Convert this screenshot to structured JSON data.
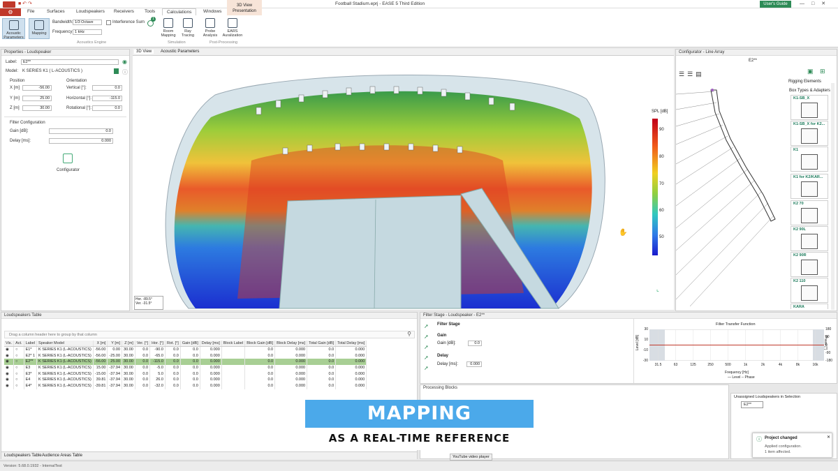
{
  "window": {
    "title": "Football Stadium.eprj - EASE 5 Third Edition",
    "users_guide": "User's Guide"
  },
  "menu_tabs": [
    "File",
    "Surfaces",
    "Loudspeakers",
    "Receivers",
    "Tools",
    "Calculations",
    "Windows"
  ],
  "context_tab": {
    "top": "3D View",
    "bottom": "Presentation"
  },
  "ribbon": {
    "acoustic_parameters": "Acoustic Parameters",
    "mapping": "Mapping",
    "bandwidth_label": "Bandwidth:",
    "bandwidth_value": "1/3 Octave",
    "frequency_label": "Frequency:",
    "frequency_value": "1 kHz",
    "interference_sum": "Interference Sum",
    "acoustics_engine": "Acoustics Engine",
    "room_mapping": "Room Mapping",
    "ray_tracing": "Ray Tracing",
    "simulation": "Simulation",
    "probe_analysis": "Probe Analysis",
    "ears_auralization": "EARS Auralization",
    "post_processing": "Post-Processing",
    "badge": "1"
  },
  "properties": {
    "title": "Properties - Loudspeaker",
    "label_label": "Label:",
    "label_value": "E2**",
    "model_label": "Model:",
    "model_value": "K SERIES K1 ( L-ACOUSTICS )",
    "position": "Position",
    "orientation": "Orientation",
    "x_label": "X [m]",
    "x_value": "-56.00",
    "y_label": "Y [m]",
    "y_value": "25.00",
    "z_label": "Z [m]",
    "z_value": "30.00",
    "vertical_label": "Vertical [°]:",
    "vertical_value": "0.0",
    "horizontal_label": "Horizontal [°]:",
    "horizontal_value": "-115.0",
    "rotational_label": "Rotational [°]:",
    "rotational_value": "0.0",
    "filter_config": "Filter Configuration",
    "gain_label": "Gain [dB]:",
    "gain_value": "0.0",
    "delay_label": "Delay [ms]:",
    "delay_value": "0.000",
    "configurator": "Configurator"
  },
  "view_tabs": [
    "3D View",
    "Acoustic Parameters"
  ],
  "view3d": {
    "legend_title": "SPL [dB]",
    "legend_ticks": [
      "90",
      "80",
      "70",
      "60",
      "50"
    ],
    "orient_hor": "Hor. -89.5°",
    "orient_ver": "Ver. -31.5°"
  },
  "configurator": {
    "title": "Configurator - Line Array",
    "name": "E2**",
    "rigging": "Rigging Elements",
    "box_types": "Box Types & Adapters",
    "items": [
      "K1-SB_X",
      "K1-SB_X for K2...",
      "K1",
      "K1 for K2/KAR...",
      "K2 70",
      "K2 90L",
      "K2 90R",
      "K2 110",
      "KARA"
    ]
  },
  "ls_table": {
    "title": "Loudspeakers Table",
    "group_hint": "Drag a column header here to group by that column",
    "columns": [
      "Vis.",
      "Act.",
      "Label",
      "Speaker Model",
      "X [m]",
      "Y [m]",
      "Z [m]",
      "Ver. [°]",
      "Hor. [°]",
      "Rot. [°]",
      "Gain [dB]",
      "Delay [ms]",
      "Block Label",
      "Block Gain [dB]",
      "Block Delay [ms]",
      "Total Gain [dB]",
      "Total Delay [ms]"
    ],
    "rows": [
      [
        "E1*",
        "K SERIES K1 (L-ACOUSTICS)",
        "-56.00",
        "0.00",
        "30.00",
        "0.0",
        "-90.0",
        "0.0",
        "0.0",
        "0.000",
        "",
        "0.0",
        "0.000",
        "0.0",
        "0.000"
      ],
      [
        "E2* 1",
        "K SERIES K1 (L-ACOUSTICS)",
        "-56.00",
        "-25.00",
        "30.00",
        "0.0",
        "-65.0",
        "0.0",
        "0.0",
        "0.000",
        "",
        "0.0",
        "0.000",
        "0.0",
        "0.000"
      ],
      [
        "E2**",
        "K SERIES K1 (L-ACOUSTICS)",
        "-56.00",
        "25.00",
        "30.00",
        "0.0",
        "-115.0",
        "0.0",
        "0.0",
        "0.000",
        "",
        "0.0",
        "0.000",
        "0.0",
        "0.000"
      ],
      [
        "E3",
        "K SERIES K1 (L-ACOUSTICS)",
        "15.00",
        "-37.94",
        "30.00",
        "0.0",
        "-5.0",
        "0.0",
        "0.0",
        "0.000",
        "",
        "0.0",
        "0.000",
        "0.0",
        "0.000"
      ],
      [
        "E3*",
        "K SERIES K1 (L-ACOUSTICS)",
        "-15.00",
        "-37.94",
        "30.00",
        "0.0",
        "5.0",
        "0.0",
        "0.0",
        "0.000",
        "",
        "0.0",
        "0.000",
        "0.0",
        "0.000"
      ],
      [
        "E4",
        "K SERIES K1 (L-ACOUSTICS)",
        "39.81",
        "-37.94",
        "30.00",
        "0.0",
        "26.0",
        "0.0",
        "0.0",
        "0.000",
        "",
        "0.0",
        "0.000",
        "0.0",
        "0.000"
      ],
      [
        "E4*",
        "K SERIES K1 (L-ACOUSTICS)",
        "-39.81",
        "-37.94",
        "30.00",
        "0.0",
        "-32.0",
        "0.0",
        "0.0",
        "0.000",
        "",
        "0.0",
        "0.000",
        "0.0",
        "0.000"
      ]
    ],
    "bottom_tabs": [
      "Loudspeakers Table",
      "Audience Areas Table"
    ]
  },
  "filter_stage": {
    "title": "Filter Stage - Loudspeaker - E2**",
    "filter_stage": "Filter Stage",
    "gain": "Gain",
    "gain_label": "Gain [dB]:",
    "gain_value": "0.0",
    "delay": "Delay",
    "delay_label": "Delay [ms]:",
    "delay_value": "0.000",
    "chart_title": "Filter Transfer Function",
    "y_left": "Level [dB]",
    "y_right": "Phase [°]",
    "x_label": "Frequency [Hz]",
    "legend": "— Level  -- Phase"
  },
  "chart_data": {
    "type": "line",
    "title": "Filter Transfer Function",
    "xlabel": "Frequency [Hz]",
    "ylabel": "Level [dB]",
    "x_ticks": [
      "31.5",
      "63",
      "125",
      "250",
      "500",
      "1k",
      "2k",
      "4k",
      "8k",
      "16k"
    ],
    "y_ticks": [
      "30",
      "10",
      "-10",
      "-30"
    ],
    "y2_ticks": [
      "180",
      "90",
      "0",
      "-90",
      "-180"
    ],
    "ylim": [
      -30,
      30
    ],
    "series": [
      {
        "name": "Level",
        "values": [
          0,
          0,
          0,
          0,
          0,
          0,
          0,
          0,
          0,
          0
        ]
      }
    ]
  },
  "processing_blocks": {
    "title": "Processing Blocks"
  },
  "unassigned": {
    "title": "Unassigned Loudspeakers in Selection",
    "item": "E2**"
  },
  "notification": {
    "title": "Project changed",
    "line1": "Applied configuration.",
    "line2": "1 item affected."
  },
  "banner": {
    "title": "MAPPING",
    "subtitle": "AS A REAL-TIME REFERENCE"
  },
  "tooltip": "YouTube video player",
  "status": "Version: 5.68.0.1932 - InternalTest",
  "colors": {
    "accent_red": "#c0392b",
    "banner_blue": "#4ba9ea",
    "selected_row": "#a8cf94",
    "users_guide": "#2e8b57"
  }
}
